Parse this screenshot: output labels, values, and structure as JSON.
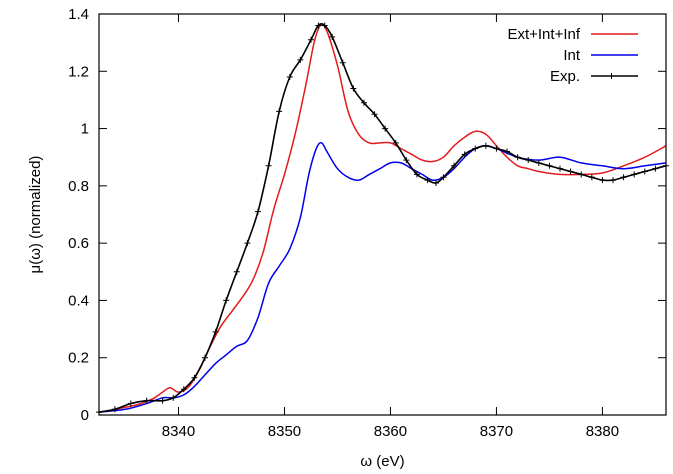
{
  "chart_data": {
    "type": "line",
    "xlabel": "ω (eV)",
    "ylabel": "μ(ω) (normalized)",
    "xlim": [
      8332.5,
      8386
    ],
    "ylim": [
      0,
      1.4
    ],
    "x_ticks": [
      8340,
      8350,
      8360,
      8370,
      8380
    ],
    "y_ticks": [
      0,
      0.2,
      0.4,
      0.6,
      0.8,
      1,
      1.2,
      1.4
    ],
    "x_tick_labels": [
      "8340",
      "8350",
      "8360",
      "8370",
      "8380"
    ],
    "y_tick_labels": [
      "0",
      "0.2",
      "0.4",
      "0.6",
      "0.8",
      "1",
      "1.2",
      "1.4"
    ],
    "grid": false,
    "legend_position": "top-right",
    "series": [
      {
        "name": "Ext+Int+Inf",
        "color": "#e41a1c",
        "marker": "none",
        "x": [
          8332.5,
          8334,
          8336,
          8337.5,
          8338.5,
          8339.2,
          8340,
          8341,
          8342,
          8343,
          8344,
          8345,
          8346,
          8347,
          8348,
          8349,
          8350,
          8351,
          8352,
          8352.8,
          8353.4,
          8354,
          8355,
          8356,
          8357,
          8358,
          8359,
          8360,
          8361,
          8362,
          8363,
          8364,
          8365,
          8366,
          8367,
          8368,
          8369,
          8370,
          8371,
          8372,
          8373,
          8374,
          8376,
          8378,
          8380,
          8382,
          8384,
          8386
        ],
        "y": [
          0.01,
          0.02,
          0.035,
          0.055,
          0.08,
          0.095,
          0.08,
          0.1,
          0.16,
          0.24,
          0.31,
          0.36,
          0.41,
          0.47,
          0.57,
          0.72,
          0.84,
          0.98,
          1.15,
          1.3,
          1.36,
          1.34,
          1.22,
          1.06,
          0.98,
          0.95,
          0.95,
          0.95,
          0.93,
          0.91,
          0.89,
          0.885,
          0.9,
          0.94,
          0.97,
          0.99,
          0.98,
          0.94,
          0.9,
          0.87,
          0.86,
          0.85,
          0.84,
          0.84,
          0.845,
          0.87,
          0.9,
          0.94
        ]
      },
      {
        "name": "Int",
        "color": "#0000ee",
        "marker": "none",
        "x": [
          8332.5,
          8335,
          8337,
          8338.5,
          8339.5,
          8340.5,
          8341.5,
          8342.5,
          8343.5,
          8344.5,
          8345.5,
          8346.5,
          8347.5,
          8348.5,
          8349.5,
          8350.5,
          8351.5,
          8352.3,
          8353,
          8353.5,
          8354,
          8355,
          8356,
          8357,
          8358,
          8359,
          8360,
          8361,
          8362,
          8363,
          8364,
          8365,
          8366,
          8367,
          8368,
          8369,
          8370,
          8372,
          8374,
          8376,
          8378,
          8380,
          8382,
          8384,
          8386
        ],
        "y": [
          0.01,
          0.02,
          0.04,
          0.06,
          0.06,
          0.07,
          0.1,
          0.14,
          0.18,
          0.21,
          0.24,
          0.26,
          0.34,
          0.46,
          0.52,
          0.58,
          0.69,
          0.84,
          0.93,
          0.95,
          0.92,
          0.86,
          0.83,
          0.82,
          0.84,
          0.86,
          0.88,
          0.88,
          0.86,
          0.84,
          0.82,
          0.83,
          0.86,
          0.9,
          0.93,
          0.94,
          0.93,
          0.9,
          0.89,
          0.9,
          0.88,
          0.87,
          0.86,
          0.87,
          0.88
        ]
      },
      {
        "name": "Exp.",
        "color": "#000000",
        "marker": "plus",
        "x": [
          8332.5,
          8334,
          8335.5,
          8337,
          8338.5,
          8339.5,
          8340.5,
          8341.5,
          8342.5,
          8343.5,
          8344.5,
          8345.5,
          8346.5,
          8347.5,
          8348.5,
          8349.5,
          8350.5,
          8351.5,
          8352.5,
          8353.2,
          8353.8,
          8354.5,
          8355.5,
          8356.5,
          8357.5,
          8358.5,
          8359.5,
          8360.5,
          8361.5,
          8362.5,
          8363.5,
          8364.3,
          8365,
          8366,
          8367,
          8368,
          8369,
          8370,
          8371,
          8372,
          8373,
          8374,
          8375,
          8376,
          8377,
          8378,
          8379,
          8380,
          8381,
          8382,
          8383,
          8384,
          8385,
          8386
        ],
        "y": [
          0.01,
          0.02,
          0.04,
          0.05,
          0.05,
          0.06,
          0.09,
          0.13,
          0.2,
          0.29,
          0.4,
          0.5,
          0.6,
          0.71,
          0.87,
          1.06,
          1.18,
          1.24,
          1.31,
          1.36,
          1.36,
          1.32,
          1.23,
          1.14,
          1.09,
          1.05,
          1.0,
          0.95,
          0.89,
          0.84,
          0.82,
          0.81,
          0.83,
          0.87,
          0.91,
          0.93,
          0.94,
          0.93,
          0.92,
          0.9,
          0.89,
          0.88,
          0.87,
          0.86,
          0.85,
          0.84,
          0.83,
          0.82,
          0.82,
          0.83,
          0.84,
          0.85,
          0.86,
          0.87
        ]
      }
    ]
  }
}
